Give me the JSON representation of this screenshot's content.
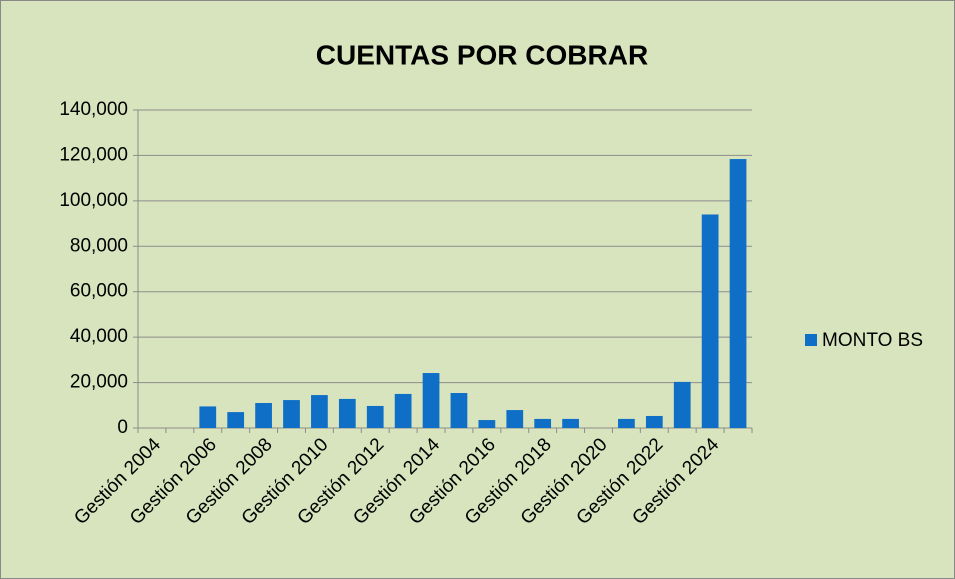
{
  "chart_data": {
    "type": "bar",
    "title": "CUENTAS POR COBRAR",
    "categories": [
      "Gestión 2004",
      null,
      "Gestión 2006",
      null,
      "Gestión 2008",
      null,
      "Gestión 2010",
      null,
      "Gestión 2012",
      null,
      "Gestión 2014",
      null,
      "Gestión 2016",
      null,
      "Gestión 2018",
      null,
      "Gestión 2020",
      null,
      "Gestión 2022",
      null,
      "Gestión 2024",
      null
    ],
    "series": [
      {
        "name": "MONTO BS",
        "color": "#0f6fc6",
        "values": [
          null,
          null,
          9500,
          7000,
          11000,
          12300,
          14500,
          12800,
          9700,
          15000,
          24200,
          15400,
          3500,
          7900,
          4000,
          4000,
          null,
          4000,
          5300,
          20300,
          94000,
          118400
        ]
      }
    ],
    "ylim": [
      0,
      140000
    ],
    "yticks": [
      0,
      {
        "value": 20000,
        "label": "20,000"
      },
      {
        "value": 40000,
        "label": "40,000"
      },
      {
        "value": 60000,
        "label": "60,000"
      },
      {
        "value": 80000,
        "label": "80,000"
      },
      {
        "value": 100000,
        "label": "100,000"
      },
      {
        "value": 120000,
        "label": "120,000"
      },
      {
        "value": 140000,
        "label": "140,000"
      }
    ],
    "grid": true,
    "legend": "right"
  }
}
